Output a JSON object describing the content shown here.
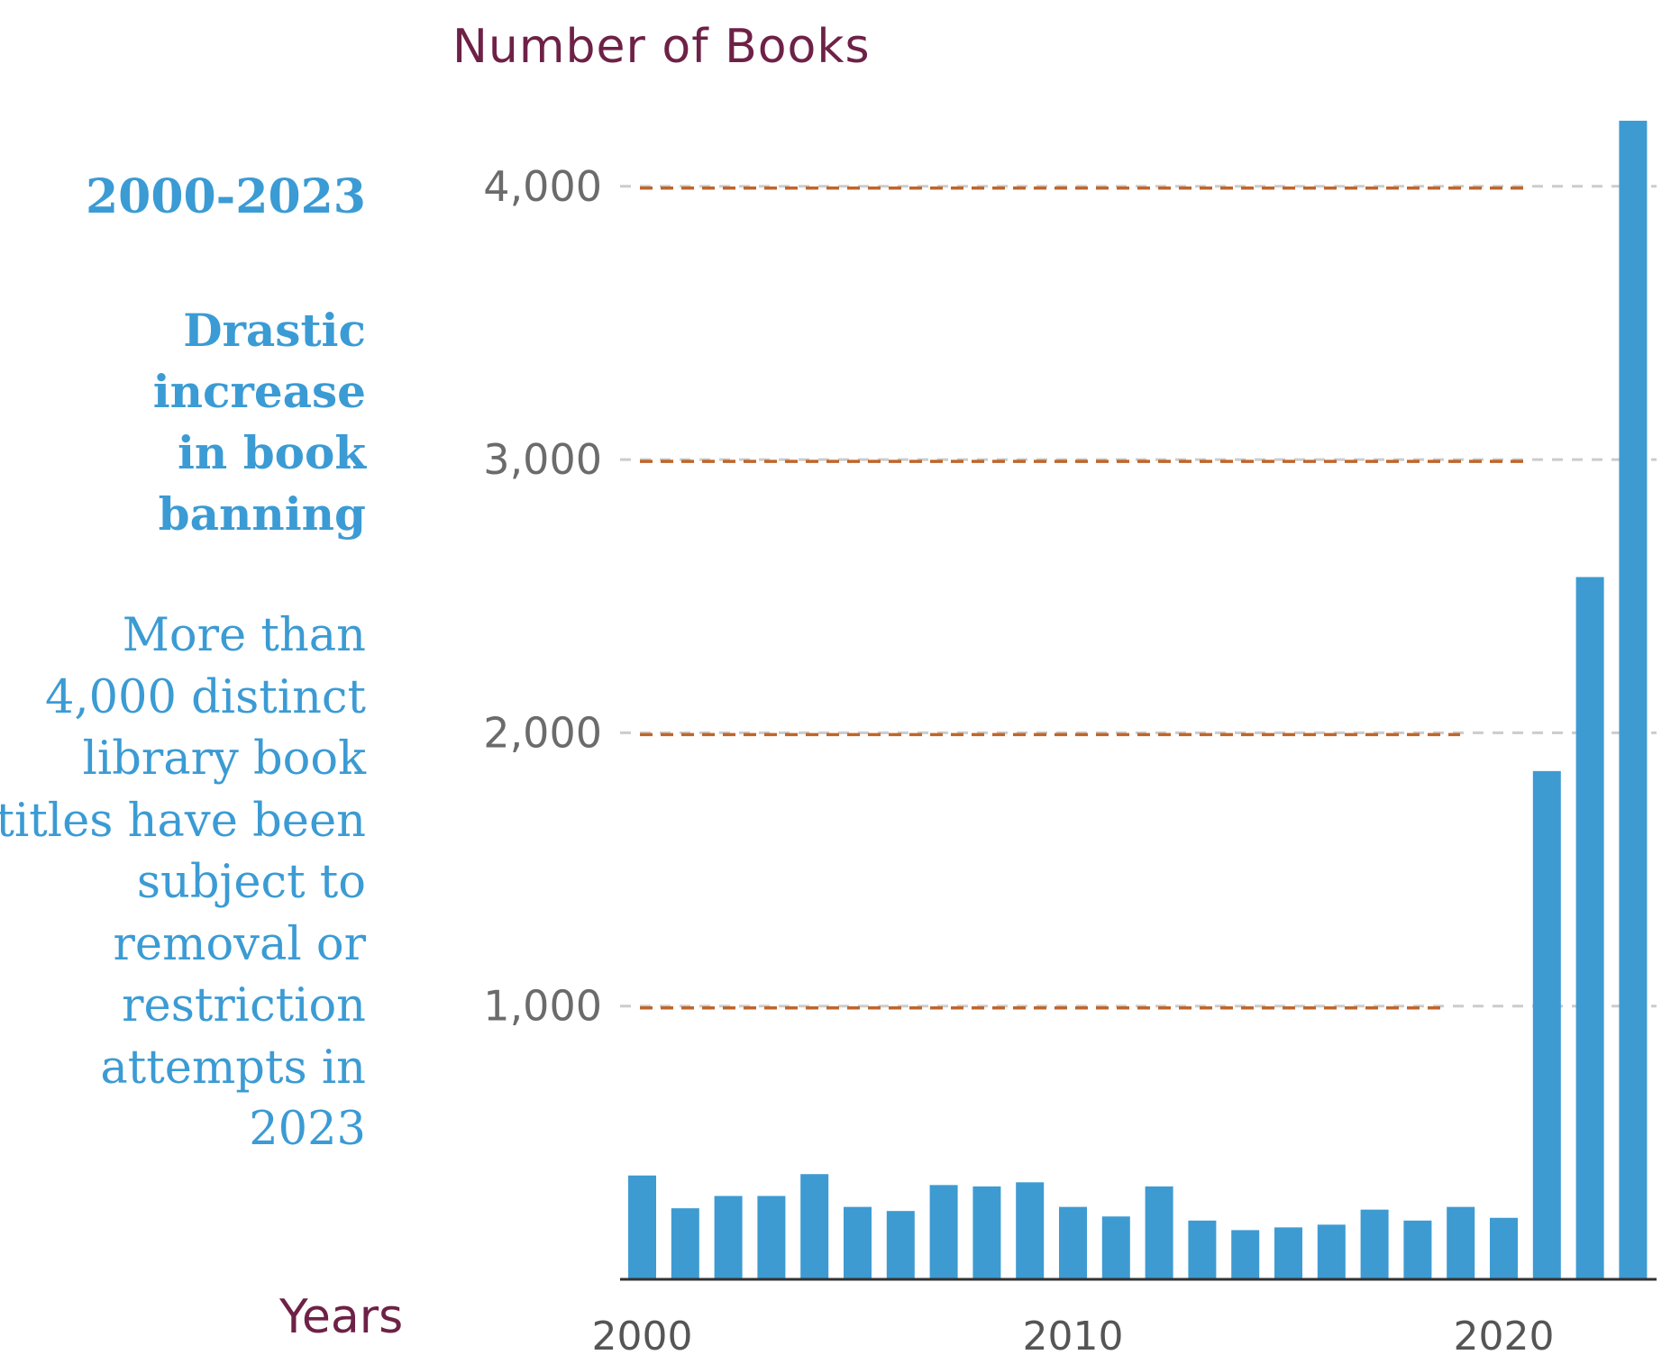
{
  "side_text": {
    "period": "2000-2023",
    "headline": "Drastic increase in book banning",
    "description": "More than 4,000 distinct library book titles have been subject to removal or restriction attempts in 2023"
  },
  "colors": {
    "bar": "#3d9bd2",
    "reference_line": "#c0652a",
    "grid": "#cccccc",
    "axis_title": "#6e2147",
    "side_text": "#3b9bd4"
  },
  "chart_data": {
    "type": "bar",
    "title": "",
    "ylabel": "Number of Books",
    "xlabel": "Years",
    "ylim": [
      0,
      4300
    ],
    "yticks": [
      1000,
      2000,
      3000,
      4000
    ],
    "ytick_labels": [
      "1,000",
      "2,000",
      "3,000",
      "4,000"
    ],
    "xtick_labels": [
      {
        "year": 2000,
        "label": "2000"
      },
      {
        "year": 2010,
        "label": "2010"
      },
      {
        "year": 2020,
        "label": "2020"
      }
    ],
    "categories": [
      2000,
      2001,
      2002,
      2003,
      2004,
      2005,
      2006,
      2007,
      2008,
      2009,
      2010,
      2011,
      2012,
      2013,
      2014,
      2015,
      2016,
      2017,
      2018,
      2019,
      2020,
      2021,
      2022,
      2023
    ],
    "values": [
      380,
      260,
      305,
      305,
      385,
      265,
      250,
      345,
      340,
      355,
      265,
      230,
      340,
      215,
      180,
      190,
      200,
      255,
      215,
      265,
      225,
      1860,
      2570,
      4240
    ],
    "grid": true,
    "reference_lines": [
      1000,
      2000,
      3000,
      4000
    ]
  }
}
